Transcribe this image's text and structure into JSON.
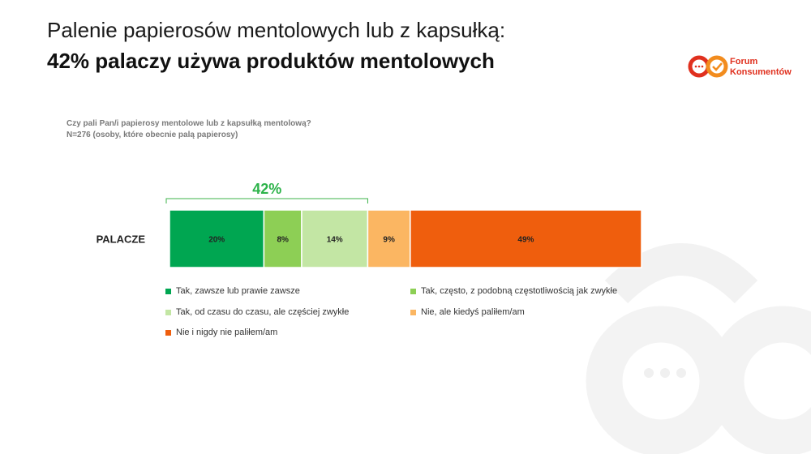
{
  "title": "Palenie papierosów mentolowych lub z kapsułką:",
  "subtitle": "42% palaczy używa produktów mentolowych",
  "logo": {
    "line1": "Forum",
    "line2": "Konsumentów"
  },
  "question": "Czy pali Pan/i papierosy mentolowe lub z kapsułką mentolową?",
  "base": "N=276 (osoby, które obecnie palą papierosy)",
  "chart_data": {
    "type": "bar",
    "orientation": "horizontal-stacked",
    "categories": [
      "PALACZE"
    ],
    "bracket_label": "42%",
    "series": [
      {
        "name": "Tak, zawsze lub prawie zawsze",
        "values": [
          20
        ],
        "label": "20%",
        "color": "#00a651"
      },
      {
        "name": "Tak, często, z podobną częstotliwością jak zwykłe",
        "values": [
          8
        ],
        "label": "8%",
        "color": "#8dcf55"
      },
      {
        "name": "Tak, od czasu do czasu, ale częściej zwykłe",
        "values": [
          14
        ],
        "label": "14%",
        "color": "#c3e6a4"
      },
      {
        "name": "Nie, ale kiedyś paliłem/am",
        "values": [
          9
        ],
        "label": "9%",
        "color": "#fbb662"
      },
      {
        "name": "Nie i nigdy nie paliłem/am",
        "values": [
          49
        ],
        "label": "49%",
        "color": "#ef5e0d"
      }
    ]
  }
}
